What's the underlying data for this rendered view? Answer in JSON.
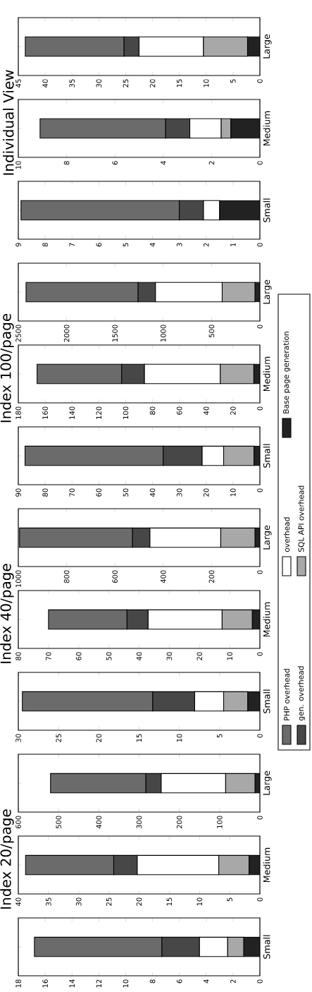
{
  "chart_data": [
    {
      "type": "bar",
      "stacked": true,
      "orientation": "horizontal",
      "categories": [
        "Small"
      ],
      "xlim": [
        18,
        0
      ],
      "xticks": [
        0,
        2,
        4,
        6,
        8,
        10,
        12,
        14,
        16,
        18
      ],
      "series": [
        {
          "color": "#222222",
          "values": [
            1.2
          ]
        },
        {
          "color": "#a8a8a8",
          "values": [
            1.2
          ]
        },
        {
          "color": "#ffffff",
          "values": [
            2.1
          ]
        },
        {
          "color": "#474747",
          "values": [
            2.8
          ]
        },
        {
          "color": "#6b6b6b",
          "values": [
            9.5
          ]
        }
      ]
    },
    {
      "type": "bar",
      "stacked": true,
      "orientation": "horizontal",
      "title": "Index 20/page",
      "categories": [
        "Medium"
      ],
      "xlim": [
        40,
        0
      ],
      "xticks": [
        0,
        5,
        10,
        15,
        20,
        25,
        30,
        35,
        40
      ],
      "series": [
        {
          "color": "#222222",
          "values": [
            1.8
          ]
        },
        {
          "color": "#a8a8a8",
          "values": [
            5.0
          ]
        },
        {
          "color": "#ffffff",
          "values": [
            13.5
          ]
        },
        {
          "color": "#474747",
          "values": [
            3.9
          ]
        },
        {
          "color": "#6b6b6b",
          "values": [
            14.6
          ]
        }
      ]
    },
    {
      "type": "bar",
      "stacked": true,
      "orientation": "horizontal",
      "categories": [
        "Large"
      ],
      "xlim": [
        600,
        0
      ],
      "xticks": [
        0,
        100,
        200,
        300,
        400,
        500,
        600
      ],
      "series": [
        {
          "color": "#222222",
          "values": [
            12
          ]
        },
        {
          "color": "#a8a8a8",
          "values": [
            73
          ]
        },
        {
          "color": "#ffffff",
          "values": [
            160
          ]
        },
        {
          "color": "#474747",
          "values": [
            38
          ]
        },
        {
          "color": "#6b6b6b",
          "values": [
            237
          ]
        }
      ]
    },
    {
      "type": "bar",
      "stacked": true,
      "orientation": "horizontal",
      "categories": [
        "Small"
      ],
      "xlim": [
        30,
        0
      ],
      "xticks": [
        0,
        5,
        10,
        15,
        20,
        25,
        30
      ],
      "series": [
        {
          "color": "#222222",
          "values": [
            1.5
          ]
        },
        {
          "color": "#a8a8a8",
          "values": [
            3.0
          ]
        },
        {
          "color": "#ffffff",
          "values": [
            3.6
          ]
        },
        {
          "color": "#474747",
          "values": [
            5.2
          ]
        },
        {
          "color": "#6b6b6b",
          "values": [
            16.2
          ]
        }
      ]
    },
    {
      "type": "bar",
      "stacked": true,
      "orientation": "horizontal",
      "title": "Index 40/page",
      "categories": [
        "Medium"
      ],
      "xlim": [
        80,
        0
      ],
      "xticks": [
        0,
        10,
        20,
        30,
        40,
        50,
        60,
        70,
        80
      ],
      "legend": "right",
      "series": [
        {
          "name": "Base page generation",
          "color": "#222222",
          "values": [
            2.5
          ]
        },
        {
          "name": "SQL API overhead",
          "color": "#a8a8a8",
          "values": [
            10
          ]
        },
        {
          "name": "overhead",
          "color": "#ffffff",
          "values": [
            24.5
          ]
        },
        {
          "name": "gen. overhead",
          "color": "#474747",
          "values": [
            7
          ]
        },
        {
          "name": "PHP overhead",
          "color": "#6b6b6b",
          "values": [
            26
          ]
        }
      ]
    },
    {
      "type": "bar",
      "stacked": true,
      "orientation": "horizontal",
      "categories": [
        "Large"
      ],
      "xlim": [
        1000,
        0
      ],
      "xticks": [
        0,
        200,
        400,
        600,
        800,
        1000
      ],
      "series": [
        {
          "color": "#222222",
          "values": [
            20
          ]
        },
        {
          "color": "#a8a8a8",
          "values": [
            142
          ]
        },
        {
          "color": "#ffffff",
          "values": [
            293
          ]
        },
        {
          "color": "#474747",
          "values": [
            72
          ]
        },
        {
          "color": "#6b6b6b",
          "values": [
            468
          ]
        }
      ]
    },
    {
      "type": "bar",
      "stacked": true,
      "orientation": "horizontal",
      "categories": [
        "Small"
      ],
      "xlim": [
        90,
        0
      ],
      "xticks": [
        0,
        10,
        20,
        30,
        40,
        50,
        60,
        70,
        80,
        90
      ],
      "series": [
        {
          "color": "#222222",
          "values": [
            2.2
          ]
        },
        {
          "color": "#a8a8a8",
          "values": [
            11.3
          ]
        },
        {
          "color": "#ffffff",
          "values": [
            8
          ]
        },
        {
          "color": "#474747",
          "values": [
            14.5
          ]
        },
        {
          "color": "#6b6b6b",
          "values": [
            51.5
          ]
        }
      ]
    },
    {
      "type": "bar",
      "stacked": true,
      "orientation": "horizontal",
      "title": "Index 100/page",
      "categories": [
        "Medium"
      ],
      "xlim": [
        180,
        0
      ],
      "xticks": [
        0,
        20,
        40,
        60,
        80,
        100,
        120,
        140,
        160,
        180
      ],
      "series": [
        {
          "color": "#222222",
          "values": [
            4.5
          ]
        },
        {
          "color": "#a8a8a8",
          "values": [
            25
          ]
        },
        {
          "color": "#ffffff",
          "values": [
            56.5
          ]
        },
        {
          "color": "#474747",
          "values": [
            17
          ]
        },
        {
          "color": "#6b6b6b",
          "values": [
            63
          ]
        }
      ]
    },
    {
      "type": "bar",
      "stacked": true,
      "orientation": "horizontal",
      "categories": [
        "Large"
      ],
      "xlim": [
        2500,
        0
      ],
      "xticks": [
        0,
        500,
        1000,
        1500,
        2000,
        2500
      ],
      "series": [
        {
          "color": "#222222",
          "values": [
            50
          ]
        },
        {
          "color": "#a8a8a8",
          "values": [
            340
          ]
        },
        {
          "color": "#ffffff",
          "values": [
            690
          ]
        },
        {
          "color": "#474747",
          "values": [
            180
          ]
        },
        {
          "color": "#6b6b6b",
          "values": [
            1160
          ]
        }
      ]
    },
    {
      "type": "bar",
      "stacked": true,
      "orientation": "horizontal",
      "categories": [
        "Small"
      ],
      "xlim": [
        9,
        0
      ],
      "xticks": [
        0,
        1,
        2,
        3,
        4,
        5,
        6,
        7,
        8,
        9
      ],
      "series": [
        {
          "color": "#222222",
          "values": [
            1.5
          ]
        },
        {
          "color": "#a8a8a8",
          "values": [
            0
          ]
        },
        {
          "color": "#ffffff",
          "values": [
            0.6
          ]
        },
        {
          "color": "#474747",
          "values": [
            0.9
          ]
        },
        {
          "color": "#6b6b6b",
          "values": [
            5.9
          ]
        }
      ]
    },
    {
      "type": "bar",
      "stacked": true,
      "orientation": "horizontal",
      "title": "Individual View",
      "categories": [
        "Medium"
      ],
      "xlim": [
        10,
        0
      ],
      "xticks": [
        0,
        2,
        4,
        6,
        8,
        10
      ],
      "series": [
        {
          "color": "#222222",
          "values": [
            1.2
          ]
        },
        {
          "color": "#a8a8a8",
          "values": [
            0.4
          ]
        },
        {
          "color": "#ffffff",
          "values": [
            1.3
          ]
        },
        {
          "color": "#474747",
          "values": [
            1.0
          ]
        },
        {
          "color": "#6b6b6b",
          "values": [
            5.2
          ]
        }
      ]
    },
    {
      "type": "bar",
      "stacked": true,
      "orientation": "horizontal",
      "categories": [
        "Large"
      ],
      "xlim": [
        45,
        0
      ],
      "xticks": [
        0,
        5,
        10,
        15,
        20,
        25,
        30,
        35,
        40,
        45
      ],
      "series": [
        {
          "color": "#222222",
          "values": [
            2.3
          ]
        },
        {
          "color": "#a8a8a8",
          "values": [
            8.2
          ]
        },
        {
          "color": "#ffffff",
          "values": [
            12
          ]
        },
        {
          "color": "#474747",
          "values": [
            2.8
          ]
        },
        {
          "color": "#6b6b6b",
          "values": [
            18.4
          ]
        }
      ]
    }
  ]
}
